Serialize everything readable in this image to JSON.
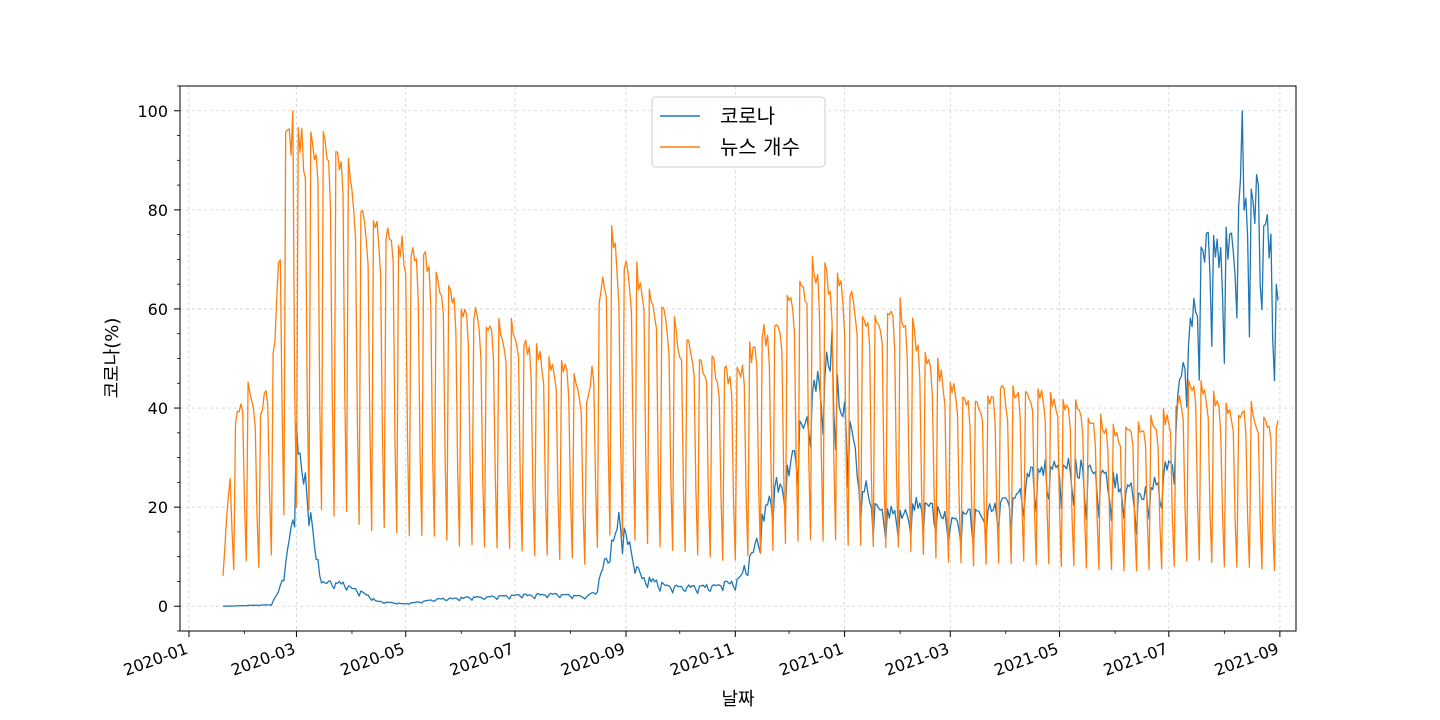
{
  "chart_data": {
    "type": "line",
    "title": "",
    "xlabel": "날짜",
    "ylabel": "코로나(%)",
    "x_range": [
      "2020-01-01",
      "2021-09-01"
    ],
    "xlim": [
      "2019-12-27",
      "2021-09-10"
    ],
    "ylim": [
      -5,
      105
    ],
    "yticks": [
      0,
      20,
      40,
      60,
      80,
      100
    ],
    "xticks": [
      "2020-01",
      "2020-03",
      "2020-05",
      "2020-07",
      "2020-09",
      "2020-11",
      "2021-01",
      "2021-03",
      "2021-05",
      "2021-07",
      "2021-09"
    ],
    "x_start": "2020-01-20",
    "x_end": "2021-08-31",
    "x_step": "1 day",
    "grid": true,
    "legend_position": "top-center",
    "series": [
      {
        "name": "코로나",
        "color": "#1f77b4",
        "shape": "smooth",
        "anchors": [
          [
            "2020-01-20",
            0
          ],
          [
            "2020-02-16",
            0.3
          ],
          [
            "2020-02-20",
            3
          ],
          [
            "2020-02-24",
            9
          ],
          [
            "2020-02-29",
            20
          ],
          [
            "2020-03-01",
            35
          ],
          [
            "2020-03-04",
            28
          ],
          [
            "2020-03-08",
            22
          ],
          [
            "2020-03-12",
            10
          ],
          [
            "2020-03-16",
            5
          ],
          [
            "2020-03-25",
            5
          ],
          [
            "2020-04-06",
            3
          ],
          [
            "2020-04-15",
            1
          ],
          [
            "2020-05-01",
            0.5
          ],
          [
            "2020-05-20",
            1.5
          ],
          [
            "2020-06-20",
            2
          ],
          [
            "2020-07-20",
            2.5
          ],
          [
            "2020-08-10",
            2
          ],
          [
            "2020-08-15",
            3
          ],
          [
            "2020-08-20",
            9
          ],
          [
            "2020-08-25",
            14
          ],
          [
            "2020-08-28",
            18
          ],
          [
            "2020-09-01",
            14
          ],
          [
            "2020-09-10",
            6
          ],
          [
            "2020-09-25",
            4
          ],
          [
            "2020-10-15",
            4
          ],
          [
            "2020-11-01",
            5
          ],
          [
            "2020-11-10",
            10
          ],
          [
            "2020-11-20",
            22
          ],
          [
            "2020-12-01",
            28
          ],
          [
            "2020-12-10",
            40
          ],
          [
            "2020-12-20",
            50
          ],
          [
            "2020-12-25",
            48
          ],
          [
            "2021-01-01",
            40
          ],
          [
            "2021-01-10",
            25
          ],
          [
            "2021-01-20",
            20
          ],
          [
            "2021-02-01",
            18
          ],
          [
            "2021-02-15",
            22
          ],
          [
            "2021-03-01",
            17
          ],
          [
            "2021-03-20",
            19
          ],
          [
            "2021-04-05",
            23
          ],
          [
            "2021-04-20",
            28
          ],
          [
            "2021-05-01",
            30
          ],
          [
            "2021-05-15",
            27
          ],
          [
            "2021-06-01",
            25
          ],
          [
            "2021-06-15",
            22
          ],
          [
            "2021-07-01",
            28
          ],
          [
            "2021-07-05",
            35
          ],
          [
            "2021-07-08",
            50
          ],
          [
            "2021-07-15",
            62
          ],
          [
            "2021-07-25",
            75
          ],
          [
            "2021-08-05",
            73
          ],
          [
            "2021-08-12",
            85
          ],
          [
            "2021-08-22",
            80
          ],
          [
            "2021-08-31",
            62
          ]
        ],
        "weekly_dip": [
          0,
          0,
          0,
          0,
          0,
          0.15,
          0.3
        ],
        "noise": 0.08,
        "peaks": [
          [
            "2020-03-01",
            37
          ],
          [
            "2020-12-25",
            56
          ],
          [
            "2021-08-11",
            100
          ]
        ],
        "last_value": 61.7
      },
      {
        "name": "뉴스 개수",
        "color": "#ff7f0e",
        "shape": "weekly",
        "anchors": [
          [
            "2020-01-20",
            6
          ],
          [
            "2020-01-25",
            35
          ],
          [
            "2020-02-01",
            45
          ],
          [
            "2020-02-10",
            40
          ],
          [
            "2020-02-18",
            55
          ],
          [
            "2020-02-23",
            95
          ],
          [
            "2020-03-01",
            97
          ],
          [
            "2020-03-15",
            95
          ],
          [
            "2020-03-29",
            92
          ],
          [
            "2020-04-10",
            78
          ],
          [
            "2020-04-20",
            77
          ],
          [
            "2020-05-01",
            74
          ],
          [
            "2020-05-15",
            70
          ],
          [
            "2020-06-01",
            62
          ],
          [
            "2020-06-15",
            58
          ],
          [
            "2020-07-01",
            56
          ],
          [
            "2020-07-15",
            51
          ],
          [
            "2020-08-01",
            48
          ],
          [
            "2020-08-10",
            41
          ],
          [
            "2020-08-15",
            55
          ],
          [
            "2020-08-22",
            75
          ],
          [
            "2020-09-01",
            70
          ],
          [
            "2020-09-15",
            64
          ],
          [
            "2020-10-01",
            55
          ],
          [
            "2020-10-15",
            50
          ],
          [
            "2020-11-01",
            47
          ],
          [
            "2020-11-15",
            55
          ],
          [
            "2020-12-01",
            62
          ],
          [
            "2020-12-15",
            69
          ],
          [
            "2021-01-01",
            65
          ],
          [
            "2021-01-15",
            58
          ],
          [
            "2021-02-01",
            60
          ],
          [
            "2021-02-15",
            52
          ],
          [
            "2021-03-01",
            45
          ],
          [
            "2021-03-15",
            42
          ],
          [
            "2021-04-01",
            44
          ],
          [
            "2021-04-15",
            44
          ],
          [
            "2021-05-01",
            42
          ],
          [
            "2021-05-15",
            39
          ],
          [
            "2021-06-01",
            36
          ],
          [
            "2021-06-15",
            36
          ],
          [
            "2021-07-01",
            39
          ],
          [
            "2021-07-15",
            47
          ],
          [
            "2021-08-01",
            40
          ],
          [
            "2021-08-15",
            40
          ],
          [
            "2021-08-31",
            37
          ]
        ],
        "weekly_factor": [
          1.0,
          0.98,
          0.97,
          0.95,
          0.88,
          0.45,
          0.2
        ],
        "noise": 0.04,
        "peaks": [
          [
            "2020-02-28",
            100
          ]
        ],
        "last_value": 37.5
      }
    ]
  }
}
